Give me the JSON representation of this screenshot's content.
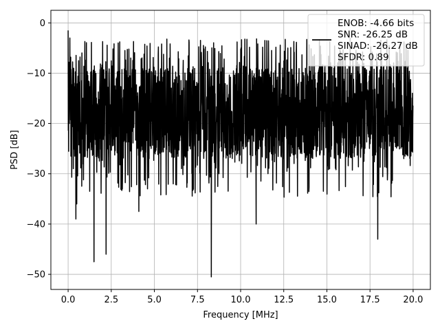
{
  "chart_data": {
    "type": "line",
    "title": "",
    "xlabel": "Frequency [MHz]",
    "ylabel": "PSD [dB]",
    "xlim": [
      -1.0,
      21.0
    ],
    "ylim": [
      -53.0,
      2.5
    ],
    "xticks": [
      0.0,
      2.5,
      5.0,
      7.5,
      10.0,
      12.5,
      15.0,
      17.5,
      20.0
    ],
    "xtick_labels": [
      "0.0",
      "2.5",
      "5.0",
      "7.5",
      "10.0",
      "12.5",
      "15.0",
      "17.5",
      "20.0"
    ],
    "yticks": [
      0,
      -10,
      -20,
      -30,
      -40,
      -50
    ],
    "ytick_labels": [
      "0",
      "−10",
      "−20",
      "−30",
      "−40",
      "−50"
    ],
    "grid": true,
    "legend_placement": "top-right",
    "line_color": "#000000",
    "series": [
      {
        "name": "ENOB: -4.66 bits\nSNR: -26.25 dB\nSINAD: -26.27 dB\nSFDR: 0.89",
        "x_range": [
          0.0,
          20.0
        ],
        "noise_floor_approx_db": -18,
        "noise_peak_approx_db": -3,
        "x": [
          0.0,
          0.05,
          0.1,
          0.2,
          0.3,
          0.45,
          0.5,
          1.5,
          2.2,
          4.1,
          8.3,
          10.9,
          17.95
        ],
        "y": [
          -1.5,
          -16,
          -3,
          -20,
          -29,
          -39,
          -36,
          -47.5,
          -46,
          -37.5,
          -50.5,
          -40,
          -43
        ]
      }
    ],
    "legend_lines": [
      "ENOB: -4.66 bits",
      "SNR: -26.25 dB",
      "SINAD: -26.27 dB",
      "SFDR: 0.89"
    ]
  }
}
